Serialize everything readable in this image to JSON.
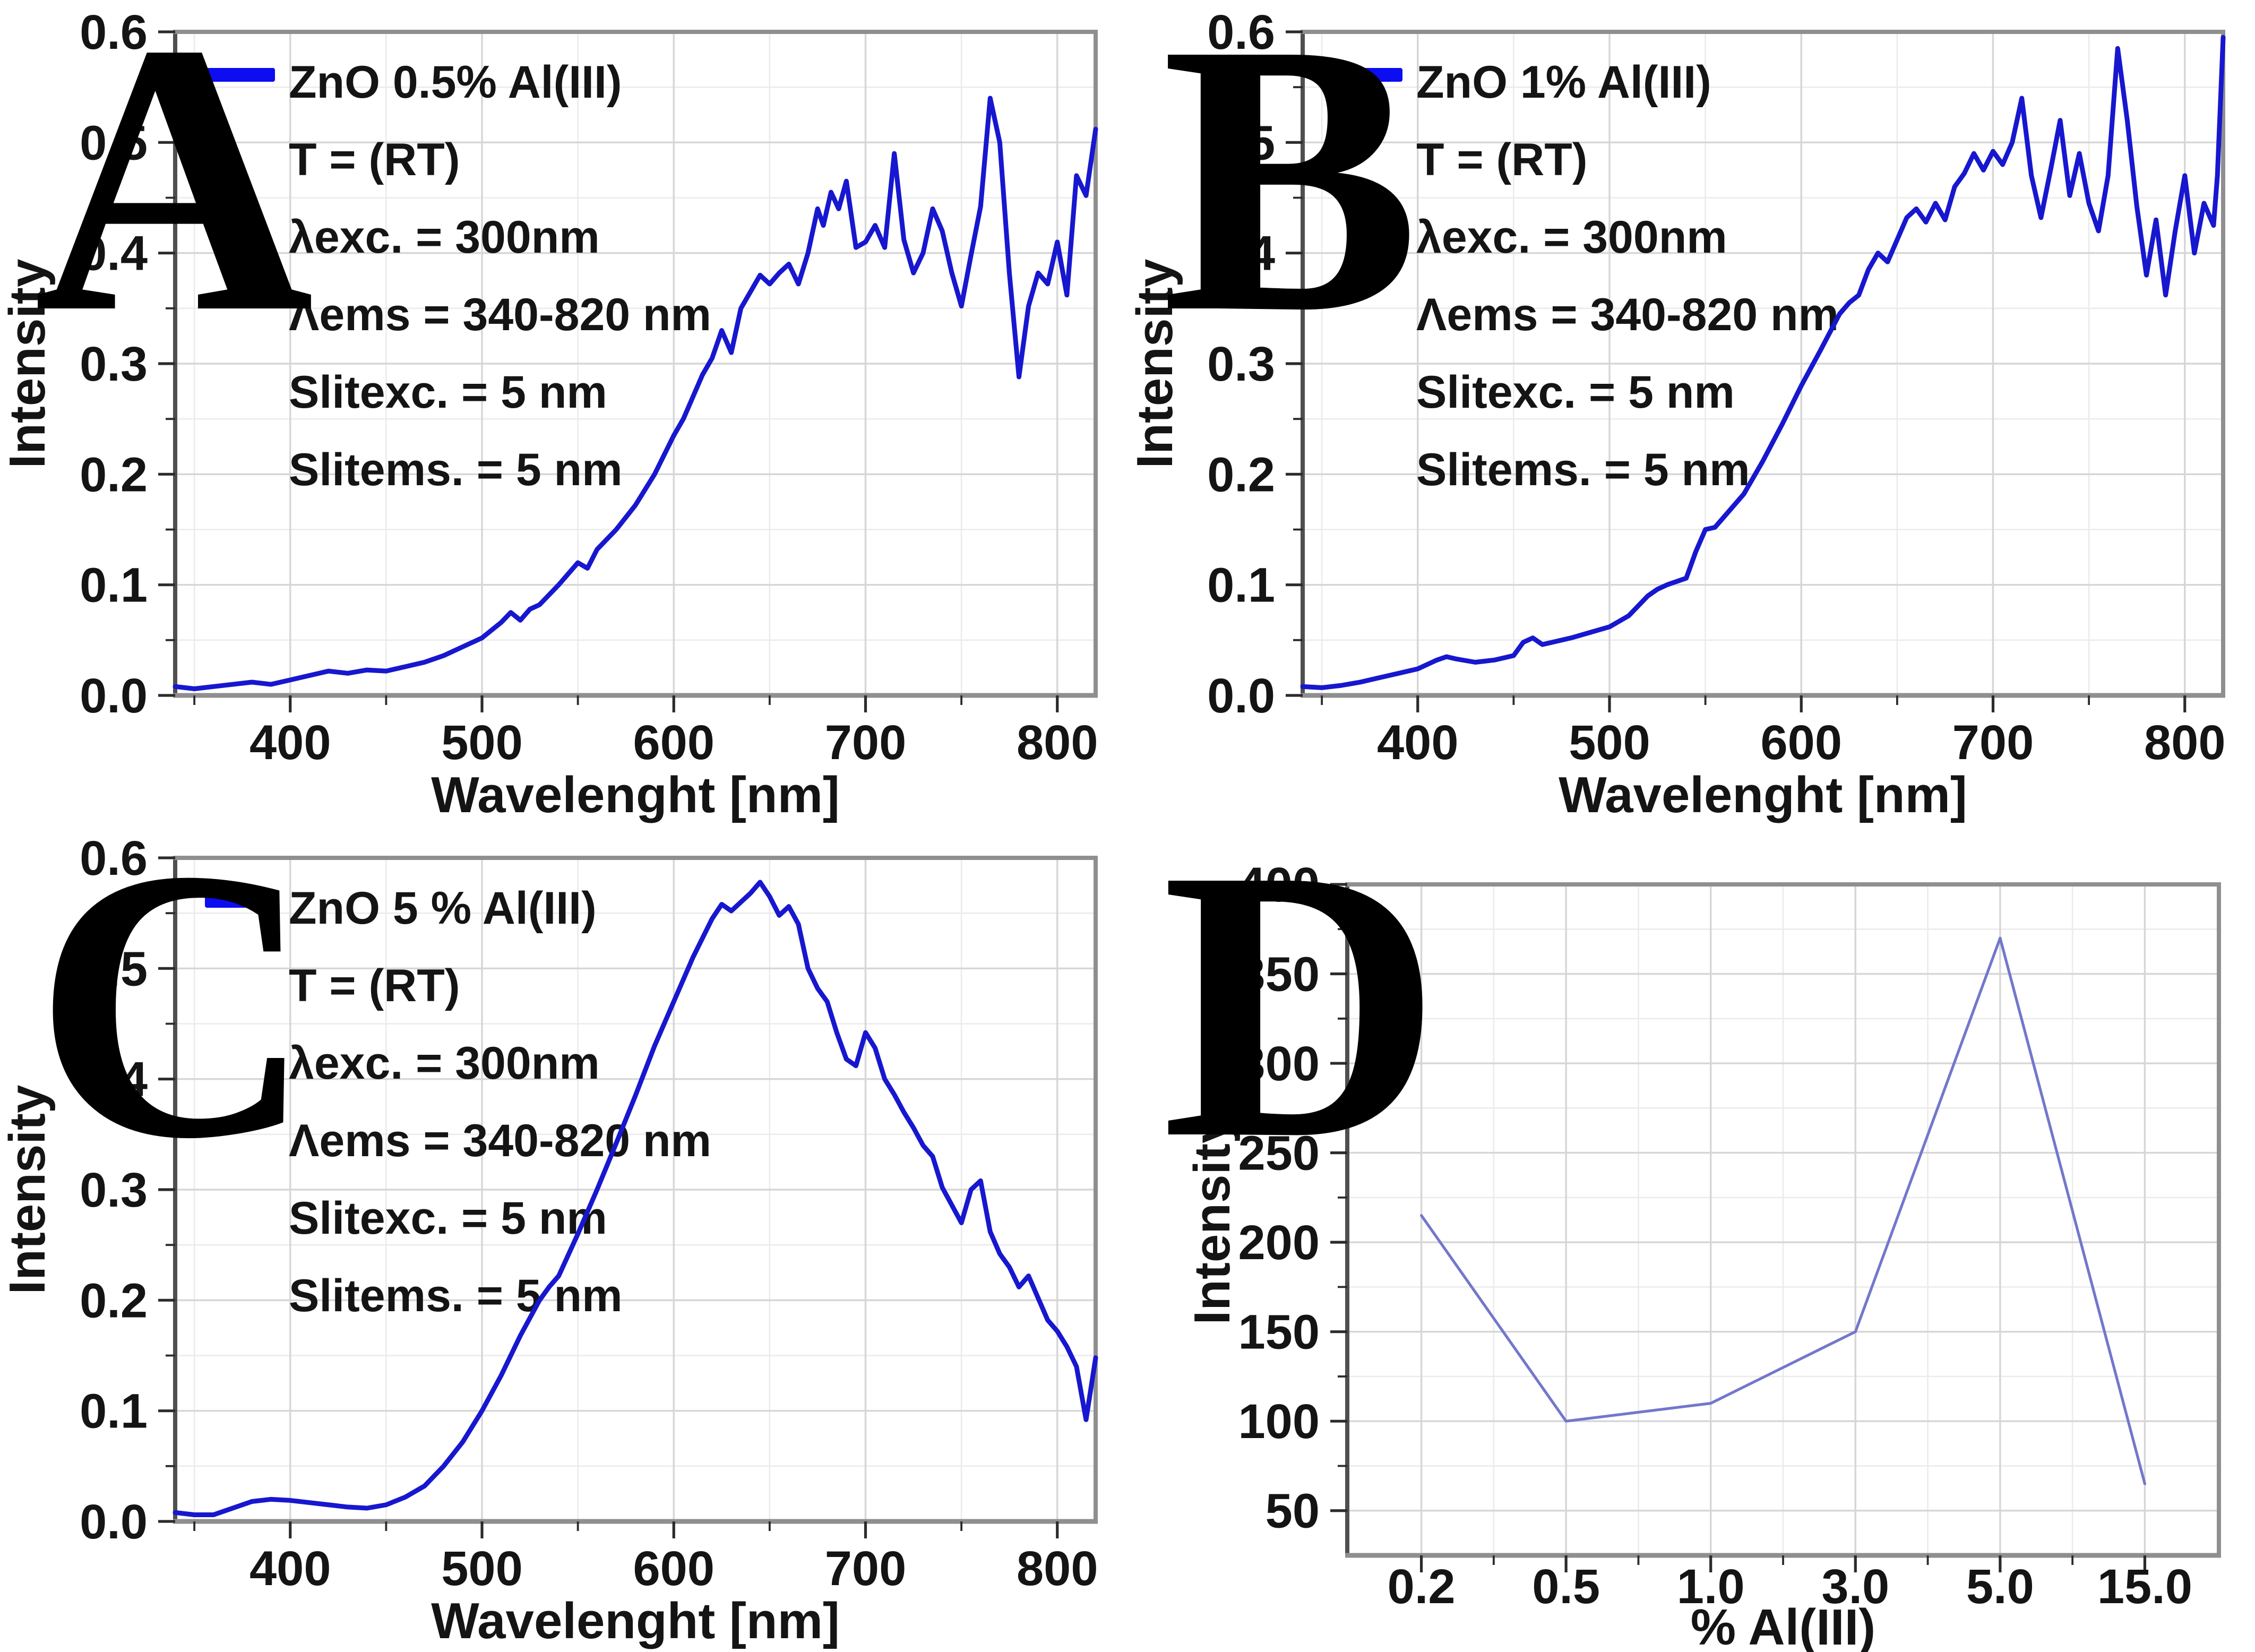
{
  "figure": {
    "panels": [
      {
        "label": "A"
      },
      {
        "label": "B"
      },
      {
        "label": "C"
      },
      {
        "label": "D"
      }
    ]
  },
  "chart_data": [
    {
      "panel": "A",
      "type": "line",
      "xlabel": "Wavelenght [nm]",
      "ylabel": "Intensity",
      "xlim": [
        340,
        820
      ],
      "ylim": [
        0,
        0.6
      ],
      "x_major_ticks": [
        400,
        500,
        600,
        700,
        800
      ],
      "x_minor_ticks": [
        350,
        450,
        550,
        650,
        750
      ],
      "y_major_ticks": [
        0,
        0.1,
        0.2,
        0.3,
        0.4,
        0.5,
        0.6
      ],
      "y_tick_labels": [
        "0.0",
        "0.1",
        "0.2",
        "0.3",
        "0.4",
        "0.5",
        "0.6"
      ],
      "y_minor_ticks": [
        0.05,
        0.15,
        0.25,
        0.35,
        0.45,
        0.55
      ],
      "grid": true,
      "legend_position": "top-left",
      "line_color": "#1717cf",
      "legend": {
        "swatch_color": "#0d0df2",
        "series_label": "ZnO 0.5% Al(III)",
        "info_lines": [
          "T = (RT)",
          "λexc. = 300nm",
          "Λems = 340-820 nm",
          "Slitexc. = 5 nm",
          "Slitems. = 5 nm"
        ]
      },
      "series": {
        "x": [
          340,
          350,
          360,
          370,
          380,
          390,
          400,
          410,
          420,
          430,
          440,
          450,
          460,
          470,
          480,
          490,
          500,
          510,
          515,
          520,
          525,
          530,
          540,
          550,
          555,
          560,
          570,
          580,
          590,
          600,
          605,
          610,
          615,
          620,
          625,
          630,
          635,
          640,
          645,
          650,
          655,
          660,
          665,
          670,
          675,
          678,
          682,
          686,
          690,
          695,
          700,
          705,
          710,
          715,
          720,
          725,
          730,
          735,
          740,
          745,
          750,
          755,
          760,
          765,
          770,
          775,
          780,
          785,
          790,
          795,
          800,
          805,
          810,
          815,
          820
        ],
        "y": [
          0.008,
          0.006,
          0.008,
          0.01,
          0.012,
          0.01,
          0.014,
          0.018,
          0.022,
          0.02,
          0.023,
          0.022,
          0.026,
          0.03,
          0.036,
          0.044,
          0.052,
          0.066,
          0.075,
          0.068,
          0.078,
          0.082,
          0.1,
          0.12,
          0.115,
          0.132,
          0.15,
          0.172,
          0.2,
          0.235,
          0.25,
          0.27,
          0.29,
          0.305,
          0.33,
          0.31,
          0.35,
          0.365,
          0.38,
          0.372,
          0.382,
          0.39,
          0.372,
          0.4,
          0.44,
          0.425,
          0.455,
          0.44,
          0.465,
          0.405,
          0.41,
          0.425,
          0.405,
          0.49,
          0.412,
          0.382,
          0.4,
          0.44,
          0.42,
          0.382,
          0.352,
          0.398,
          0.442,
          0.54,
          0.5,
          0.382,
          0.288,
          0.352,
          0.382,
          0.372,
          0.41,
          0.362,
          0.47,
          0.452,
          0.512
        ]
      }
    },
    {
      "panel": "B",
      "type": "line",
      "xlabel": "Wavelenght [nm]",
      "ylabel": "Intensity",
      "xlim": [
        340,
        820
      ],
      "ylim": [
        0,
        0.6
      ],
      "x_major_ticks": [
        400,
        500,
        600,
        700,
        800
      ],
      "x_minor_ticks": [
        350,
        450,
        550,
        650,
        750
      ],
      "y_major_ticks": [
        0,
        0.1,
        0.2,
        0.3,
        0.4,
        0.5,
        0.6
      ],
      "y_tick_labels": [
        "0.0",
        "0.1",
        "0.2",
        "0.3",
        "0.4",
        "0.5",
        "0.6"
      ],
      "y_minor_ticks": [
        0.05,
        0.15,
        0.25,
        0.35,
        0.45,
        0.55
      ],
      "grid": true,
      "legend_position": "top-left",
      "line_color": "#1717cf",
      "legend": {
        "swatch_color": "#0d0df2",
        "series_label": "ZnO 1% Al(III)",
        "info_lines": [
          "T = (RT)",
          "λexc. = 300nm",
          "Λems = 340-820 nm",
          "Slitexc. = 5 nm",
          "Slitems. = 5 nm"
        ]
      },
      "series": {
        "x": [
          340,
          350,
          360,
          370,
          380,
          390,
          400,
          410,
          415,
          420,
          430,
          440,
          450,
          455,
          460,
          465,
          470,
          480,
          490,
          500,
          510,
          520,
          525,
          530,
          540,
          545,
          550,
          555,
          560,
          570,
          580,
          590,
          600,
          610,
          620,
          625,
          630,
          635,
          640,
          645,
          650,
          655,
          660,
          665,
          670,
          675,
          680,
          685,
          690,
          695,
          700,
          705,
          710,
          715,
          720,
          725,
          730,
          735,
          740,
          745,
          750,
          755,
          760,
          765,
          770,
          775,
          780,
          785,
          790,
          795,
          800,
          805,
          810,
          815,
          817,
          820
        ],
        "y": [
          0.008,
          0.007,
          0.009,
          0.012,
          0.016,
          0.02,
          0.024,
          0.032,
          0.035,
          0.033,
          0.03,
          0.032,
          0.036,
          0.048,
          0.052,
          0.046,
          0.048,
          0.052,
          0.057,
          0.062,
          0.072,
          0.09,
          0.096,
          0.1,
          0.106,
          0.13,
          0.15,
          0.152,
          0.162,
          0.182,
          0.212,
          0.245,
          0.28,
          0.312,
          0.345,
          0.355,
          0.362,
          0.385,
          0.4,
          0.392,
          0.412,
          0.432,
          0.44,
          0.428,
          0.445,
          0.43,
          0.46,
          0.472,
          0.49,
          0.475,
          0.492,
          0.48,
          0.5,
          0.54,
          0.47,
          0.432,
          0.475,
          0.52,
          0.452,
          0.49,
          0.445,
          0.42,
          0.47,
          0.585,
          0.52,
          0.442,
          0.38,
          0.43,
          0.362,
          0.42,
          0.47,
          0.4,
          0.445,
          0.425,
          0.47,
          0.595
        ]
      }
    },
    {
      "panel": "C",
      "type": "line",
      "xlabel": "Wavelenght [nm]",
      "ylabel": "Intensity",
      "xlim": [
        340,
        820
      ],
      "ylim": [
        0,
        0.6
      ],
      "x_major_ticks": [
        400,
        500,
        600,
        700,
        800
      ],
      "x_minor_ticks": [
        350,
        450,
        550,
        650,
        750
      ],
      "y_major_ticks": [
        0,
        0.1,
        0.2,
        0.3,
        0.4,
        0.5,
        0.6
      ],
      "y_tick_labels": [
        "0.0",
        "0.1",
        "0.2",
        "0.3",
        "0.4",
        "0.5",
        "0.6"
      ],
      "y_minor_ticks": [
        0.05,
        0.15,
        0.25,
        0.35,
        0.45,
        0.55
      ],
      "grid": true,
      "legend_position": "top-left",
      "line_color": "#1717cf",
      "legend": {
        "swatch_color": "#0d0df2",
        "series_label": "ZnO 5 % Al(III)",
        "info_lines": [
          "T = (RT)",
          "λexc. = 300nm",
          "Λems = 340-820 nm",
          "Slitexc. = 5 nm",
          "Slitems. = 5 nm"
        ]
      },
      "series": {
        "x": [
          340,
          350,
          360,
          370,
          380,
          390,
          400,
          410,
          420,
          430,
          440,
          450,
          460,
          470,
          480,
          490,
          500,
          510,
          520,
          530,
          535,
          540,
          550,
          560,
          570,
          580,
          590,
          600,
          610,
          620,
          625,
          630,
          635,
          640,
          645,
          650,
          655,
          660,
          665,
          670,
          675,
          680,
          685,
          690,
          695,
          700,
          705,
          710,
          715,
          720,
          725,
          730,
          735,
          740,
          745,
          750,
          755,
          760,
          765,
          770,
          775,
          780,
          785,
          790,
          795,
          800,
          805,
          810,
          815,
          820
        ],
        "y": [
          0.008,
          0.006,
          0.006,
          0.012,
          0.018,
          0.02,
          0.019,
          0.017,
          0.015,
          0.013,
          0.012,
          0.015,
          0.022,
          0.032,
          0.05,
          0.072,
          0.1,
          0.132,
          0.168,
          0.2,
          0.212,
          0.222,
          0.26,
          0.3,
          0.342,
          0.385,
          0.43,
          0.47,
          0.51,
          0.545,
          0.558,
          0.552,
          0.56,
          0.568,
          0.578,
          0.565,
          0.548,
          0.556,
          0.54,
          0.5,
          0.482,
          0.47,
          0.442,
          0.418,
          0.412,
          0.442,
          0.428,
          0.4,
          0.386,
          0.37,
          0.356,
          0.34,
          0.33,
          0.302,
          0.286,
          0.27,
          0.3,
          0.308,
          0.262,
          0.242,
          0.23,
          0.212,
          0.222,
          0.202,
          0.182,
          0.172,
          0.158,
          0.14,
          0.092,
          0.148
        ]
      }
    },
    {
      "panel": "D",
      "type": "line",
      "x_type": "categorical",
      "xlabel": "% Al(III)",
      "ylabel": "Intensity",
      "categories": [
        "0.2",
        "0.5",
        "1.0",
        "3.0",
        "5.0",
        "15.0"
      ],
      "values": [
        215,
        100,
        110,
        150,
        370,
        65
      ],
      "ylim": [
        25,
        400
      ],
      "y_major_ticks": [
        50,
        100,
        150,
        200,
        250,
        300,
        350,
        400
      ],
      "y_tick_labels": [
        "50",
        "100",
        "150",
        "200",
        "250",
        "300",
        "350",
        "400"
      ],
      "y_minor_ticks": [
        75,
        125,
        175,
        225,
        275,
        325,
        375
      ],
      "grid": true,
      "legend_position": "none",
      "line_color": "#7377cb"
    }
  ]
}
